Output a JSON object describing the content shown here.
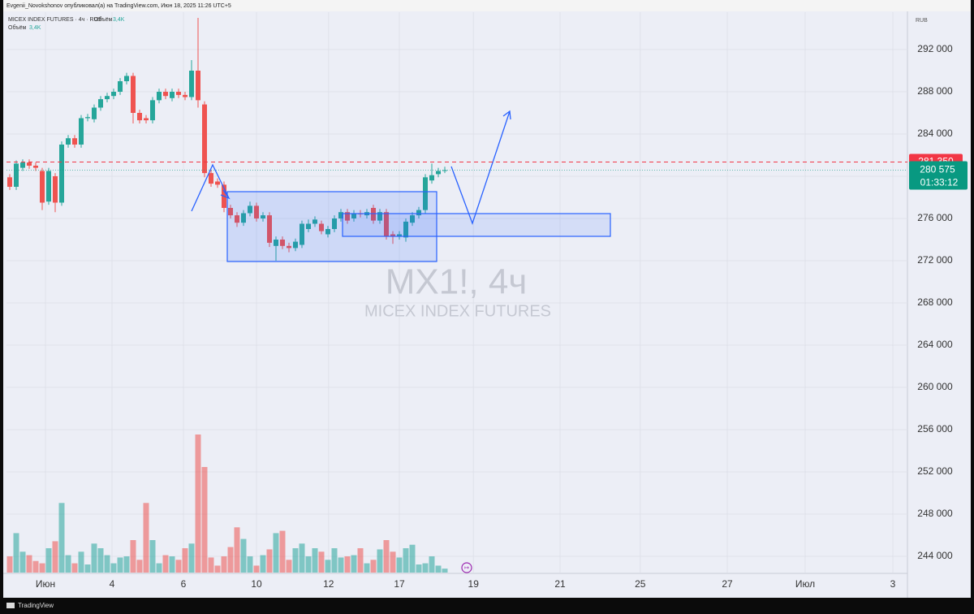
{
  "chart_data": {
    "type": "candlestick",
    "header": "Evgenii_Novokshonov опубликовал(а) на TradingView.com, Июн 18, 2025 11:26 UTC+5",
    "legend_symbol": "MICEX INDEX FUTURES · 4ч · RUS",
    "legend_volume": "Объём",
    "legend_volume_value": "3,4K",
    "title": "MX1!, 4ч",
    "subtitle": "MICEX INDEX FUTURES",
    "currency": "RUB",
    "footer": "TradingView",
    "up_color": "#26a69a",
    "down_color": "#ef5350",
    "open": [
      279900,
      279000,
      280800,
      281300,
      281000,
      280500,
      277600,
      280000,
      277500,
      283000,
      283600,
      283000,
      285500,
      285400,
      286500,
      287300,
      287600,
      288000,
      289000,
      289500,
      286000,
      285500,
      285300,
      287200,
      288000,
      287400,
      288000,
      287700,
      287500,
      290000,
      286800,
      280300,
      279500,
      279200,
      277000,
      276300,
      275600,
      276500,
      277200,
      276000,
      276300,
      273400,
      274000,
      273400,
      273200,
      273500,
      275000,
      275500,
      275500,
      274500,
      275000,
      276000,
      276600,
      276000,
      276500,
      276300,
      277000,
      275800,
      276600,
      274500,
      274300,
      274200,
      275600,
      276300,
      276800,
      279600,
      280200,
      280500
    ],
    "high": [
      280200,
      281500,
      281600,
      281600,
      281300,
      280800,
      280800,
      280300,
      283300,
      283900,
      283900,
      285800,
      285900,
      286800,
      287600,
      287900,
      288300,
      289300,
      289800,
      289800,
      286300,
      285800,
      287500,
      288300,
      288300,
      288300,
      288300,
      288000,
      291000,
      295000,
      287100,
      280600,
      279800,
      279500,
      277300,
      276600,
      276800,
      277600,
      277500,
      276600,
      276600,
      274300,
      274300,
      273700,
      274100,
      275800,
      275900,
      276200,
      275800,
      275300,
      276300,
      276900,
      276900,
      276800,
      276800,
      276900,
      277300,
      276900,
      276900,
      274800,
      274800,
      276000,
      276600,
      277100,
      280200,
      281200,
      280800,
      280900
    ],
    "low": [
      278700,
      278700,
      280500,
      280700,
      280500,
      276800,
      277300,
      276600,
      277200,
      282700,
      282700,
      282700,
      285200,
      285100,
      286200,
      287000,
      287300,
      287700,
      288700,
      285000,
      285000,
      285000,
      285000,
      286900,
      287300,
      287100,
      287400,
      287200,
      287200,
      286500,
      279900,
      279000,
      278900,
      276600,
      276000,
      275200,
      275300,
      276200,
      275700,
      275700,
      273300,
      272000,
      273100,
      272800,
      272900,
      273200,
      274700,
      275200,
      274500,
      274200,
      274700,
      275700,
      275500,
      275700,
      276100,
      276000,
      275500,
      275500,
      274000,
      273600,
      274000,
      273800,
      275300,
      276000,
      276500,
      279300,
      279900,
      280300
    ],
    "close": [
      279000,
      281200,
      281300,
      281000,
      280800,
      277500,
      280500,
      277500,
      283000,
      283600,
      283000,
      285500,
      285600,
      286500,
      287300,
      287600,
      288000,
      289000,
      289500,
      286000,
      285300,
      285300,
      287200,
      288000,
      287600,
      288000,
      287700,
      287500,
      290000,
      287200,
      280300,
      279300,
      279200,
      277000,
      276300,
      275600,
      276500,
      277200,
      276000,
      276300,
      273700,
      274000,
      273400,
      273200,
      273800,
      275500,
      275500,
      275900,
      274800,
      275000,
      276000,
      276600,
      275800,
      276500,
      276400,
      276600,
      275800,
      276600,
      274300,
      274300,
      274500,
      275700,
      276300,
      276800,
      279900,
      280100,
      280500,
      280575
    ],
    "volume": [
      14,
      34,
      18,
      15,
      10,
      8,
      21,
      27,
      60,
      15,
      8,
      18,
      7,
      25,
      21,
      15,
      8,
      13,
      14,
      28,
      11,
      60,
      28,
      8,
      15,
      14,
      11,
      21,
      25,
      119,
      91,
      13,
      6,
      14,
      22,
      39,
      29,
      14,
      6,
      15,
      20,
      34,
      36,
      11,
      21,
      25,
      14,
      21,
      18,
      11,
      21,
      13,
      14,
      15,
      21,
      8,
      11,
      20,
      28,
      18,
      13,
      21,
      24,
      7,
      8,
      14,
      6,
      3.4
    ],
    "xlim": [
      -0.5,
      138.25
    ],
    "xticks": [
      {
        "value": 5.5,
        "label": "Июн"
      },
      {
        "value": 15.75,
        "label": "4"
      },
      {
        "value": 26.75,
        "label": "6"
      },
      {
        "value": 38,
        "label": "10"
      },
      {
        "value": 49.1,
        "label": "12"
      },
      {
        "value": 60,
        "label": "17"
      },
      {
        "value": 71.4,
        "label": "19"
      },
      {
        "value": 84.75,
        "label": "21"
      },
      {
        "value": 97.1,
        "label": "25"
      },
      {
        "value": 110.5,
        "label": "27"
      },
      {
        "value": 122.5,
        "label": "Июл"
      },
      {
        "value": 136,
        "label": "3"
      }
    ],
    "ylim": [
      242462,
      295538
    ],
    "yticks": [
      {
        "value": 244000,
        "label": "244 000"
      },
      {
        "value": 248000,
        "label": "248 000"
      },
      {
        "value": 252000,
        "label": "252 000"
      },
      {
        "value": 256000,
        "label": "256 000"
      },
      {
        "value": 260000,
        "label": "260 000"
      },
      {
        "value": 264000,
        "label": "264 000"
      },
      {
        "value": 268000,
        "label": "268 000"
      },
      {
        "value": 272000,
        "label": "272 000"
      },
      {
        "value": 276000,
        "label": "276 000"
      },
      {
        "value": 280000,
        "label": "280 000"
      },
      {
        "value": 284000,
        "label": "284 000"
      },
      {
        "value": 288000,
        "label": "288 000"
      },
      {
        "value": 292000,
        "label": "292 000"
      }
    ],
    "grid": true,
    "reference_line": {
      "value": 281350,
      "label": "281 350",
      "color": "#f23645"
    },
    "last_price": {
      "value": 280575,
      "label": "280 575",
      "color": "#089981"
    },
    "countdown": "01:33:12"
  }
}
